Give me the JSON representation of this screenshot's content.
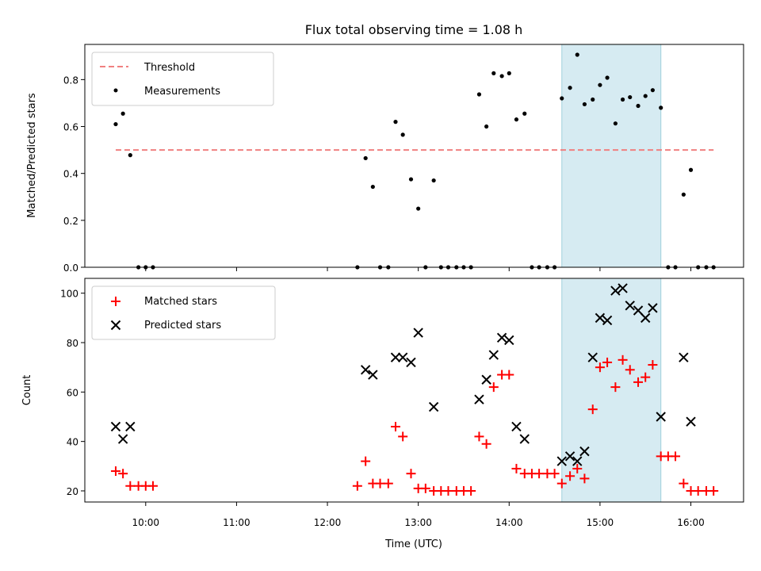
{
  "chart_data": [
    {
      "type": "scatter",
      "title": "Flux total observing time = 1.08 h",
      "xlabel": "",
      "ylabel": "Matched/Predicted stars",
      "xlim": [
        9.33,
        16.58
      ],
      "ylim": [
        0,
        0.95
      ],
      "yticks": [
        0.0,
        0.2,
        0.4,
        0.6,
        0.8
      ],
      "ytick_labels": [
        "0.0",
        "0.2",
        "0.4",
        "0.6",
        "0.8"
      ],
      "shaded_span": {
        "x0": 14.58,
        "x1": 15.67,
        "color": "#add8e6"
      },
      "threshold": {
        "name": "Threshold",
        "y": 0.5,
        "x0": 9.67,
        "x1": 16.25,
        "color": "#f08080"
      },
      "legend": {
        "location": "top-left",
        "entries": [
          "Threshold",
          "Measurements"
        ]
      },
      "series": [
        {
          "name": "Measurements",
          "marker": "dot",
          "color": "#000000",
          "x": [
            9.67,
            9.75,
            9.83,
            9.92,
            10.0,
            10.08,
            12.33,
            12.42,
            12.5,
            12.58,
            12.67,
            12.75,
            12.83,
            12.92,
            13.0,
            13.08,
            13.17,
            13.25,
            13.33,
            13.42,
            13.5,
            13.58,
            13.67,
            13.75,
            13.83,
            13.92,
            14.0,
            14.08,
            14.17,
            14.25,
            14.33,
            14.42,
            14.5,
            14.58,
            14.67,
            14.75,
            14.83,
            14.92,
            15.0,
            15.08,
            15.17,
            15.25,
            15.33,
            15.42,
            15.5,
            15.58,
            15.67,
            15.75,
            15.83,
            15.92,
            16.0,
            16.08,
            16.17,
            16.25
          ],
          "y": [
            0.61,
            0.655,
            0.478,
            0.0,
            0.0,
            0.0,
            0.0,
            0.465,
            0.343,
            0.0,
            0.0,
            0.62,
            0.565,
            0.375,
            0.25,
            0.0,
            0.37,
            0.0,
            0.0,
            0.0,
            0.0,
            0.0,
            0.737,
            0.6,
            0.827,
            0.815,
            0.827,
            0.63,
            0.655,
            0.0,
            0.0,
            0.0,
            0.0,
            0.72,
            0.765,
            0.906,
            0.695,
            0.715,
            0.777,
            0.808,
            0.613,
            0.715,
            0.725,
            0.688,
            0.73,
            0.755,
            0.68,
            0.0,
            0.0,
            0.31,
            0.415,
            0.0,
            0.0,
            0.0
          ]
        }
      ]
    },
    {
      "type": "scatter",
      "title": "",
      "xlabel": "Time (UTC)",
      "ylabel": "Count",
      "xlim": [
        9.33,
        16.58
      ],
      "ylim": [
        15.5,
        106
      ],
      "yticks": [
        20,
        40,
        60,
        80,
        100
      ],
      "ytick_labels": [
        "20",
        "40",
        "60",
        "80",
        "100"
      ],
      "xticks": [
        10,
        11,
        12,
        13,
        14,
        15,
        16
      ],
      "xtick_labels": [
        "10:00",
        "11:00",
        "12:00",
        "13:00",
        "14:00",
        "15:00",
        "16:00"
      ],
      "shaded_span": {
        "x0": 14.58,
        "x1": 15.67,
        "color": "#add8e6"
      },
      "legend": {
        "location": "top-left",
        "entries": [
          "Matched stars",
          "Predicted stars"
        ]
      },
      "series": [
        {
          "name": "Matched stars",
          "marker": "plus",
          "color": "#ff0000",
          "x": [
            9.67,
            9.75,
            9.83,
            9.92,
            10.0,
            10.08,
            12.33,
            12.42,
            12.5,
            12.58,
            12.67,
            12.75,
            12.83,
            12.92,
            13.0,
            13.08,
            13.17,
            13.25,
            13.33,
            13.42,
            13.5,
            13.58,
            13.67,
            13.75,
            13.83,
            13.92,
            14.0,
            14.08,
            14.17,
            14.25,
            14.33,
            14.42,
            14.5,
            14.58,
            14.67,
            14.75,
            14.83,
            14.92,
            15.0,
            15.08,
            15.17,
            15.25,
            15.33,
            15.42,
            15.5,
            15.58,
            15.67,
            15.75,
            15.83,
            15.92,
            16.0,
            16.08,
            16.17,
            16.25
          ],
          "y": [
            28,
            27,
            22,
            22,
            22,
            22,
            22,
            32,
            23,
            23,
            23,
            46,
            42,
            27,
            21,
            21,
            20,
            20,
            20,
            20,
            20,
            20,
            42,
            39,
            62,
            67,
            67,
            29,
            27,
            27,
            27,
            27,
            27,
            23,
            26,
            29,
            25,
            53,
            70,
            72,
            62,
            73,
            69,
            64,
            66,
            71,
            34,
            34,
            34,
            23,
            20,
            20,
            20,
            20
          ]
        },
        {
          "name": "Predicted stars",
          "marker": "x",
          "color": "#000000",
          "x": [
            9.67,
            9.75,
            9.83,
            12.42,
            12.5,
            12.75,
            12.83,
            12.92,
            13.0,
            13.17,
            13.67,
            13.75,
            13.83,
            13.92,
            14.0,
            14.08,
            14.17,
            14.58,
            14.67,
            14.75,
            14.83,
            14.92,
            15.0,
            15.08,
            15.17,
            15.25,
            15.33,
            15.42,
            15.5,
            15.58,
            15.67,
            15.92,
            16.0
          ],
          "y": [
            46,
            41,
            46,
            69,
            67,
            74,
            74,
            72,
            84,
            54,
            57,
            65,
            75,
            82,
            81,
            46,
            41,
            32,
            34,
            32,
            36,
            74,
            90,
            89,
            101,
            102,
            95,
            93,
            90,
            94,
            50,
            74,
            48
          ]
        }
      ]
    }
  ]
}
